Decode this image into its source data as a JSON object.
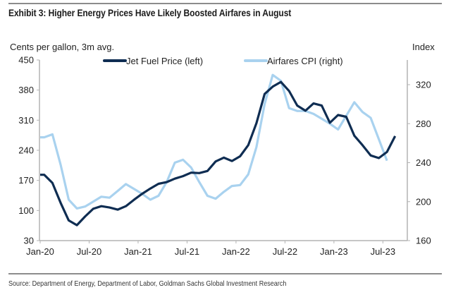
{
  "header": {
    "title": "Exhibit 3: Higher Energy Prices Have Likely Boosted Airfares in August"
  },
  "footer": {
    "source": "Source: Department of Energy, Department of Labor, Goldman Sachs Global Investment Research"
  },
  "colors": {
    "jet_fuel": "#0f2d52",
    "airfares": "#a9d2ef",
    "axis": "#b3b3b3",
    "rule": "#8c8c8c"
  },
  "chart_data": {
    "type": "line",
    "title": "Exhibit 3: Higher Energy Prices Have Likely Boosted Airfares in August",
    "ylabel_left": "Cents per gallon, 3m avg.",
    "ylabel_right": "Index",
    "xlabel": "",
    "ylim_left": [
      30,
      450
    ],
    "ylim_right": [
      160,
      346
    ],
    "yticks_left": [
      450,
      380,
      310,
      240,
      170,
      100,
      30
    ],
    "yticks_right": [
      320,
      280,
      240,
      200,
      160
    ],
    "xtick_labels": [
      "Jan-20",
      "Jul-20",
      "Jan-21",
      "Jul-21",
      "Jan-22",
      "Jul-22",
      "Jan-23",
      "Jul-23"
    ],
    "x_start": "Jan-20",
    "x_end": "Oct-23",
    "grid": false,
    "legend_position": "top-center",
    "series": [
      {
        "name": "Jet Fuel Price (left)",
        "axis": "left",
        "start": "Jan-20",
        "values": [
          183,
          164,
          118,
          77,
          66,
          86,
          104,
          110,
          107,
          102,
          110,
          125,
          139,
          151,
          162,
          166,
          174,
          180,
          188,
          187,
          192,
          214,
          223,
          215,
          226,
          252,
          303,
          371,
          388,
          399,
          378,
          344,
          332,
          349,
          344,
          304,
          322,
          318,
          274,
          252,
          228,
          222,
          236,
          273
        ]
      },
      {
        "name": "Airfares CPI (right)",
        "axis": "right",
        "start": "Jan-20",
        "values": [
          266,
          269,
          238,
          202,
          193,
          195,
          200,
          205,
          204,
          211,
          218,
          213,
          208,
          202,
          206,
          220,
          240,
          243,
          235,
          220,
          206,
          203,
          210,
          216,
          217,
          228,
          256,
          300,
          330,
          324,
          296,
          293,
          293,
          290,
          285,
          280,
          274,
          288,
          302,
          292,
          286,
          264,
          242
        ]
      }
    ]
  }
}
